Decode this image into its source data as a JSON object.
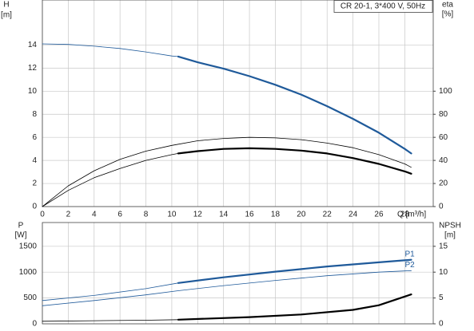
{
  "chart_data": [
    {
      "type": "line",
      "title": "CR 20-1, 3*400 V, 50Hz",
      "ylabel": "H",
      "yunit": "[m]",
      "y2label": "eta",
      "y2unit": "[%]",
      "xlabel": "Q [m³/h]",
      "xlim": [
        0,
        30.2
      ],
      "xticks": [
        0,
        2,
        4,
        6,
        8,
        10,
        12,
        14,
        16,
        18,
        20,
        22,
        24,
        26,
        28
      ],
      "ylim": [
        0,
        17.9
      ],
      "yticks": [
        0,
        2,
        4,
        6,
        8,
        10,
        12,
        14
      ],
      "y2lim": [
        0,
        179
      ],
      "y2ticks": [
        0,
        20,
        40,
        60,
        80,
        100
      ],
      "grid": true,
      "series": [
        {
          "color": "#1f5a9a",
          "width": 0.8,
          "x": [
            0,
            2,
            4,
            6,
            8,
            10,
            10.5
          ],
          "values": [
            14.1,
            14.05,
            13.9,
            13.7,
            13.4,
            13.05,
            13.0
          ]
        },
        {
          "color": "#1f5a9a",
          "width": 2.2,
          "x": [
            10.5,
            12,
            14,
            16,
            18,
            20,
            22,
            24,
            26,
            28,
            28.5
          ],
          "values": [
            13.0,
            12.5,
            11.95,
            11.3,
            10.55,
            9.7,
            8.7,
            7.6,
            6.4,
            5.0,
            4.6
          ]
        },
        {
          "color": "#000000",
          "width": 0.8,
          "axis": "y2",
          "x": [
            0,
            2,
            4,
            6,
            8,
            10,
            12,
            14,
            16,
            18,
            20,
            22,
            24,
            26,
            28,
            28.5
          ],
          "values": [
            0,
            18,
            31,
            41,
            48,
            53,
            57,
            59,
            60,
            59.5,
            58,
            55,
            51,
            45,
            37,
            34
          ]
        },
        {
          "color": "#000000",
          "width": 0.8,
          "axis": "y2",
          "x": [
            0,
            2,
            4,
            6,
            8,
            10,
            10.5
          ],
          "values": [
            0,
            14,
            25,
            33,
            40,
            45,
            46
          ]
        },
        {
          "color": "#000000",
          "width": 2.2,
          "axis": "y2",
          "x": [
            10.5,
            12,
            14,
            16,
            18,
            20,
            22,
            24,
            26,
            28,
            28.5
          ],
          "values": [
            46,
            48,
            50,
            50.5,
            50,
            48.5,
            46,
            42,
            37,
            30.5,
            28.5
          ]
        }
      ]
    },
    {
      "type": "line",
      "ylabel": "P",
      "yunit": "[W]",
      "y2label": "NPSH",
      "y2unit": "[m]",
      "xlim": [
        0,
        30.2
      ],
      "ylim": [
        0,
        1960
      ],
      "yticks": [
        0,
        500,
        1000,
        1500
      ],
      "y2lim": [
        0,
        19.6
      ],
      "y2ticks": [
        0,
        5,
        10,
        15
      ],
      "series": [
        {
          "color": "#1f5a9a",
          "width": 0.8,
          "x": [
            0,
            4,
            8,
            10.5
          ],
          "values": [
            450,
            550,
            680,
            790
          ]
        },
        {
          "name": "P1",
          "color": "#1f5a9a",
          "width": 2.2,
          "x": [
            10.5,
            14,
            18,
            22,
            26,
            28.5
          ],
          "values": [
            790,
            900,
            1010,
            1110,
            1190,
            1240
          ]
        },
        {
          "name": "P2",
          "color": "#1f5a9a",
          "width": 0.8,
          "x": [
            0,
            4,
            8,
            10.5,
            14,
            18,
            22,
            26,
            28.5
          ],
          "values": [
            350,
            450,
            560,
            640,
            740,
            840,
            930,
            1000,
            1030
          ]
        },
        {
          "color": "#000000",
          "width": 0.8,
          "axis": "y2",
          "x": [
            0,
            4,
            8,
            10.5
          ],
          "values": [
            0.5,
            0.6,
            0.7,
            0.8
          ]
        },
        {
          "color": "#000000",
          "width": 2.2,
          "axis": "y2",
          "x": [
            10.5,
            16,
            20,
            24,
            26,
            28.5
          ],
          "values": [
            0.8,
            1.3,
            1.8,
            2.7,
            3.6,
            5.7
          ]
        }
      ]
    }
  ]
}
